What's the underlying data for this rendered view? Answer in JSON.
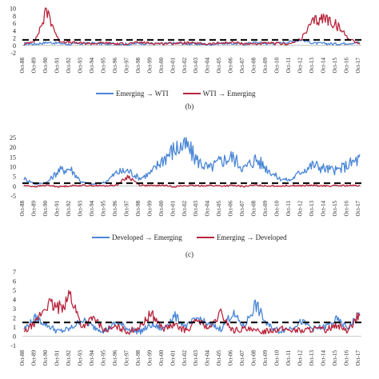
{
  "panel_labels": {
    "b": "(b)",
    "c": "(c)"
  },
  "colors": {
    "blue": "#4a86d6",
    "red": "#b8263d",
    "threshold": "#000000"
  },
  "chart_data": [
    {
      "type": "line",
      "title": "",
      "categories": [
        "Oct-88",
        "Oct-89",
        "Oct-90",
        "Oct-91",
        "Oct-92",
        "Oct-93",
        "Oct-94",
        "Oct-95",
        "Oct-96",
        "Oct-97",
        "Oct-98",
        "Oct-99",
        "Oct-00",
        "Oct-01",
        "Oct-02",
        "Oct-03",
        "Oct-04",
        "Oct-05",
        "Oct-06",
        "Oct-07",
        "Oct-08",
        "Oct-09",
        "Oct-10",
        "Oct-11",
        "Oct-12",
        "Oct-13",
        "Oct-14",
        "Oct-15",
        "Oct-16",
        "Oct-17"
      ],
      "yticks": [
        -2,
        0,
        2,
        4,
        6,
        8,
        10
      ],
      "ylim": [
        -2,
        11
      ],
      "threshold": 1.5,
      "series": [
        {
          "name": "Emerging → WTI",
          "color": "blue",
          "values": [
            0.5,
            0.4,
            0.8,
            0.6,
            0.3,
            0.5,
            0.6,
            0.4,
            0.5,
            0.3,
            0.6,
            0.5,
            0.4,
            0.6,
            0.5,
            0.4,
            0.3,
            0.6,
            0.5,
            0.4,
            0.8,
            0.5,
            0.6,
            1.0,
            1.5,
            0.6,
            0.5,
            0.4,
            0.6,
            0.8
          ]
        },
        {
          "name": "WTI → Emerging",
          "color": "red",
          "values": [
            0.2,
            1.5,
            9.5,
            1.2,
            0.8,
            0.6,
            0.5,
            0.7,
            0.4,
            0.5,
            0.8,
            0.6,
            0.5,
            0.6,
            0.7,
            0.5,
            0.4,
            0.6,
            0.8,
            0.5,
            0.4,
            0.6,
            0.5,
            0.4,
            2.0,
            6.5,
            7.5,
            5.5,
            2.0,
            0.4
          ]
        }
      ]
    },
    {
      "type": "line",
      "title": "",
      "categories": [
        "Oct-88",
        "Oct-89",
        "Oct-90",
        "Oct-91",
        "Oct-92",
        "Oct-93",
        "Oct-94",
        "Oct-95",
        "Oct-96",
        "Oct-97",
        "Oct-98",
        "Oct-99",
        "Oct-00",
        "Oct-01",
        "Oct-02",
        "Oct-03",
        "Oct-04",
        "Oct-05",
        "Oct-06",
        "Oct-07",
        "Oct-08",
        "Oct-09",
        "Oct-10",
        "Oct-11",
        "Oct-12",
        "Oct-13",
        "Oct-14",
        "Oct-15",
        "Oct-16",
        "Oct-17"
      ],
      "yticks": [
        -5,
        0,
        5,
        10,
        15,
        20,
        25
      ],
      "ylim": [
        -5,
        25
      ],
      "threshold": 1.5,
      "series": [
        {
          "name": "Developed → Emerging",
          "color": "blue",
          "values": [
            4,
            1,
            2,
            8,
            9,
            2,
            1,
            2,
            7,
            8,
            4,
            7,
            14,
            19,
            21,
            13,
            9,
            13,
            15,
            9,
            14,
            9,
            4,
            3,
            8,
            11,
            9,
            8,
            11,
            14
          ]
        },
        {
          "name": "Emerging → Developed",
          "color": "red",
          "values": [
            0.3,
            -0.2,
            0.5,
            -0.3,
            0.2,
            0.4,
            0.3,
            0.1,
            0.6,
            5,
            0.5,
            0.2,
            0.4,
            -0.2,
            0.3,
            0.2,
            0.4,
            0.1,
            0.3,
            -0.1,
            0.5,
            0.2,
            0.1,
            0.3,
            0.2,
            0.4,
            0.1,
            0.2,
            0.3,
            0.2
          ]
        }
      ]
    },
    {
      "type": "line",
      "title": "",
      "categories": [
        "Oct-88",
        "Oct-89",
        "Oct-90",
        "Oct-91",
        "Oct-92",
        "Oct-93",
        "Oct-94",
        "Oct-95",
        "Oct-96",
        "Oct-97",
        "Oct-98",
        "Oct-99",
        "Oct-00",
        "Oct-01",
        "Oct-02",
        "Oct-03",
        "Oct-04",
        "Oct-05",
        "Oct-06",
        "Oct-07",
        "Oct-08",
        "Oct-09",
        "Oct-10",
        "Oct-11",
        "Oct-12",
        "Oct-13",
        "Oct-14",
        "Oct-15",
        "Oct-16",
        "Oct-17"
      ],
      "yticks": [
        -1,
        0,
        1,
        2,
        3,
        4,
        5,
        6,
        7
      ],
      "ylim": [
        -1,
        7
      ],
      "threshold": 1.5,
      "series": [
        {
          "name": "",
          "color": "blue",
          "values": [
            0.8,
            2.0,
            1.2,
            0.5,
            0.8,
            1.8,
            1.0,
            0.6,
            1.5,
            0.8,
            0.5,
            1.2,
            0.8,
            2.2,
            1.0,
            2.0,
            1.2,
            0.8,
            2.5,
            1.0,
            3.5,
            1.2,
            0.6,
            0.9,
            1.6,
            0.8,
            1.0,
            1.8,
            0.9,
            2.5
          ]
        },
        {
          "name": "",
          "color": "red",
          "values": [
            0.4,
            1.5,
            3.5,
            3.0,
            4.5,
            1.0,
            2.0,
            0.6,
            1.0,
            0.5,
            1.0,
            2.5,
            0.8,
            1.2,
            0.6,
            1.8,
            0.8,
            2.5,
            0.6,
            0.8,
            0.5,
            0.6,
            0.8,
            0.7,
            0.6,
            0.8,
            0.7,
            1.2,
            0.6,
            2.5
          ]
        }
      ]
    }
  ],
  "legends": {
    "a": [
      "Emerging → WTI",
      "WTI → Emerging"
    ],
    "b": [
      "Developed → Emerging",
      "Emerging → Developed"
    ]
  }
}
